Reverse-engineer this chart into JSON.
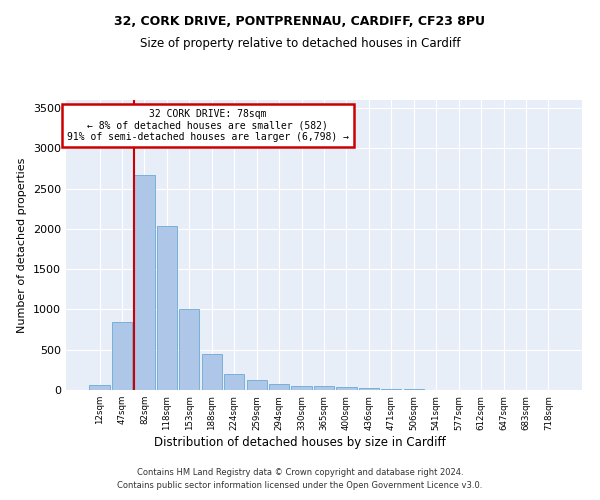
{
  "title1": "32, CORK DRIVE, PONTPRENNAU, CARDIFF, CF23 8PU",
  "title2": "Size of property relative to detached houses in Cardiff",
  "xlabel": "Distribution of detached houses by size in Cardiff",
  "ylabel": "Number of detached properties",
  "bar_labels": [
    "12sqm",
    "47sqm",
    "82sqm",
    "118sqm",
    "153sqm",
    "188sqm",
    "224sqm",
    "259sqm",
    "294sqm",
    "330sqm",
    "365sqm",
    "400sqm",
    "436sqm",
    "471sqm",
    "506sqm",
    "541sqm",
    "577sqm",
    "612sqm",
    "647sqm",
    "683sqm",
    "718sqm"
  ],
  "bar_values": [
    60,
    840,
    2670,
    2030,
    1000,
    450,
    200,
    130,
    70,
    55,
    55,
    35,
    25,
    15,
    10,
    5,
    5,
    3,
    2,
    2,
    1
  ],
  "bar_color": "#aec6e8",
  "bar_edge_color": "#6aaad4",
  "bg_color": "#e8eef8",
  "grid_color": "#ffffff",
  "red_line_index": 2,
  "annotation_title": "32 CORK DRIVE: 78sqm",
  "annotation_line1": "← 8% of detached houses are smaller (582)",
  "annotation_line2": "91% of semi-detached houses are larger (6,798) →",
  "annotation_box_color": "#ffffff",
  "annotation_border_color": "#cc0000",
  "red_line_color": "#cc0000",
  "ylim": [
    0,
    3600
  ],
  "yticks": [
    0,
    500,
    1000,
    1500,
    2000,
    2500,
    3000,
    3500
  ],
  "footer1": "Contains HM Land Registry data © Crown copyright and database right 2024.",
  "footer2": "Contains public sector information licensed under the Open Government Licence v3.0."
}
